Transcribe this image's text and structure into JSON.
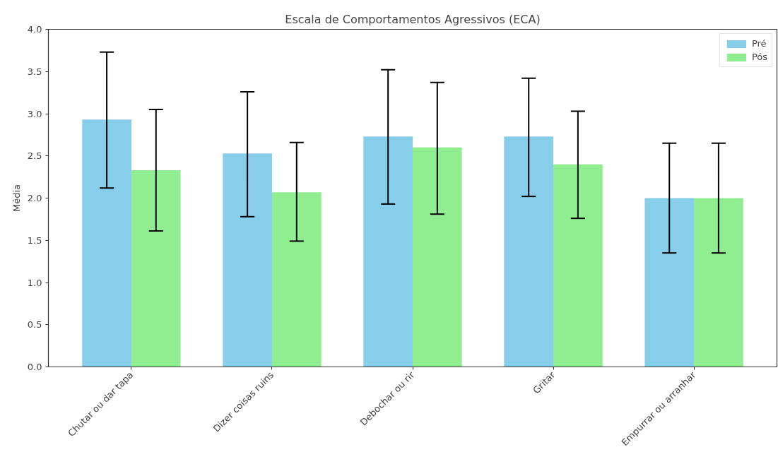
{
  "chart_data": {
    "type": "bar",
    "title": "Escala de Comportamentos Agressivos (ECA)",
    "ylabel": "Média",
    "categories": [
      "Chutar ou dar tapa",
      "Dizer coisas ruins",
      "Debochar ou rir",
      "Gritar",
      "Empurrar ou arranhar"
    ],
    "series": [
      {
        "name": "Pré",
        "color": "#87ceeb",
        "values": [
          2.93,
          2.53,
          2.73,
          2.73,
          2.0
        ],
        "errors": [
          [
            2.12,
            3.73
          ],
          [
            1.78,
            3.26
          ],
          [
            1.93,
            3.52
          ],
          [
            2.02,
            3.42
          ],
          [
            1.35,
            2.65
          ]
        ]
      },
      {
        "name": "Pós",
        "color": "#90ee90",
        "values": [
          2.33,
          2.07,
          2.6,
          2.4,
          2.0
        ],
        "errors": [
          [
            1.61,
            3.05
          ],
          [
            1.49,
            2.66
          ],
          [
            1.81,
            3.37
          ],
          [
            1.76,
            3.03
          ],
          [
            1.35,
            2.65
          ]
        ]
      }
    ],
    "ylim": [
      0,
      4
    ],
    "yticks": [
      {
        "value": 0,
        "label": "0.0"
      },
      0.5,
      {
        "value": 1,
        "label": "1.0"
      },
      1.5,
      {
        "value": 2,
        "label": "2.0"
      },
      2.5,
      {
        "value": 3,
        "label": "3.0"
      },
      3.5,
      {
        "value": 4,
        "label": "4.0"
      }
    ],
    "legend": "top right",
    "grid": false
  }
}
